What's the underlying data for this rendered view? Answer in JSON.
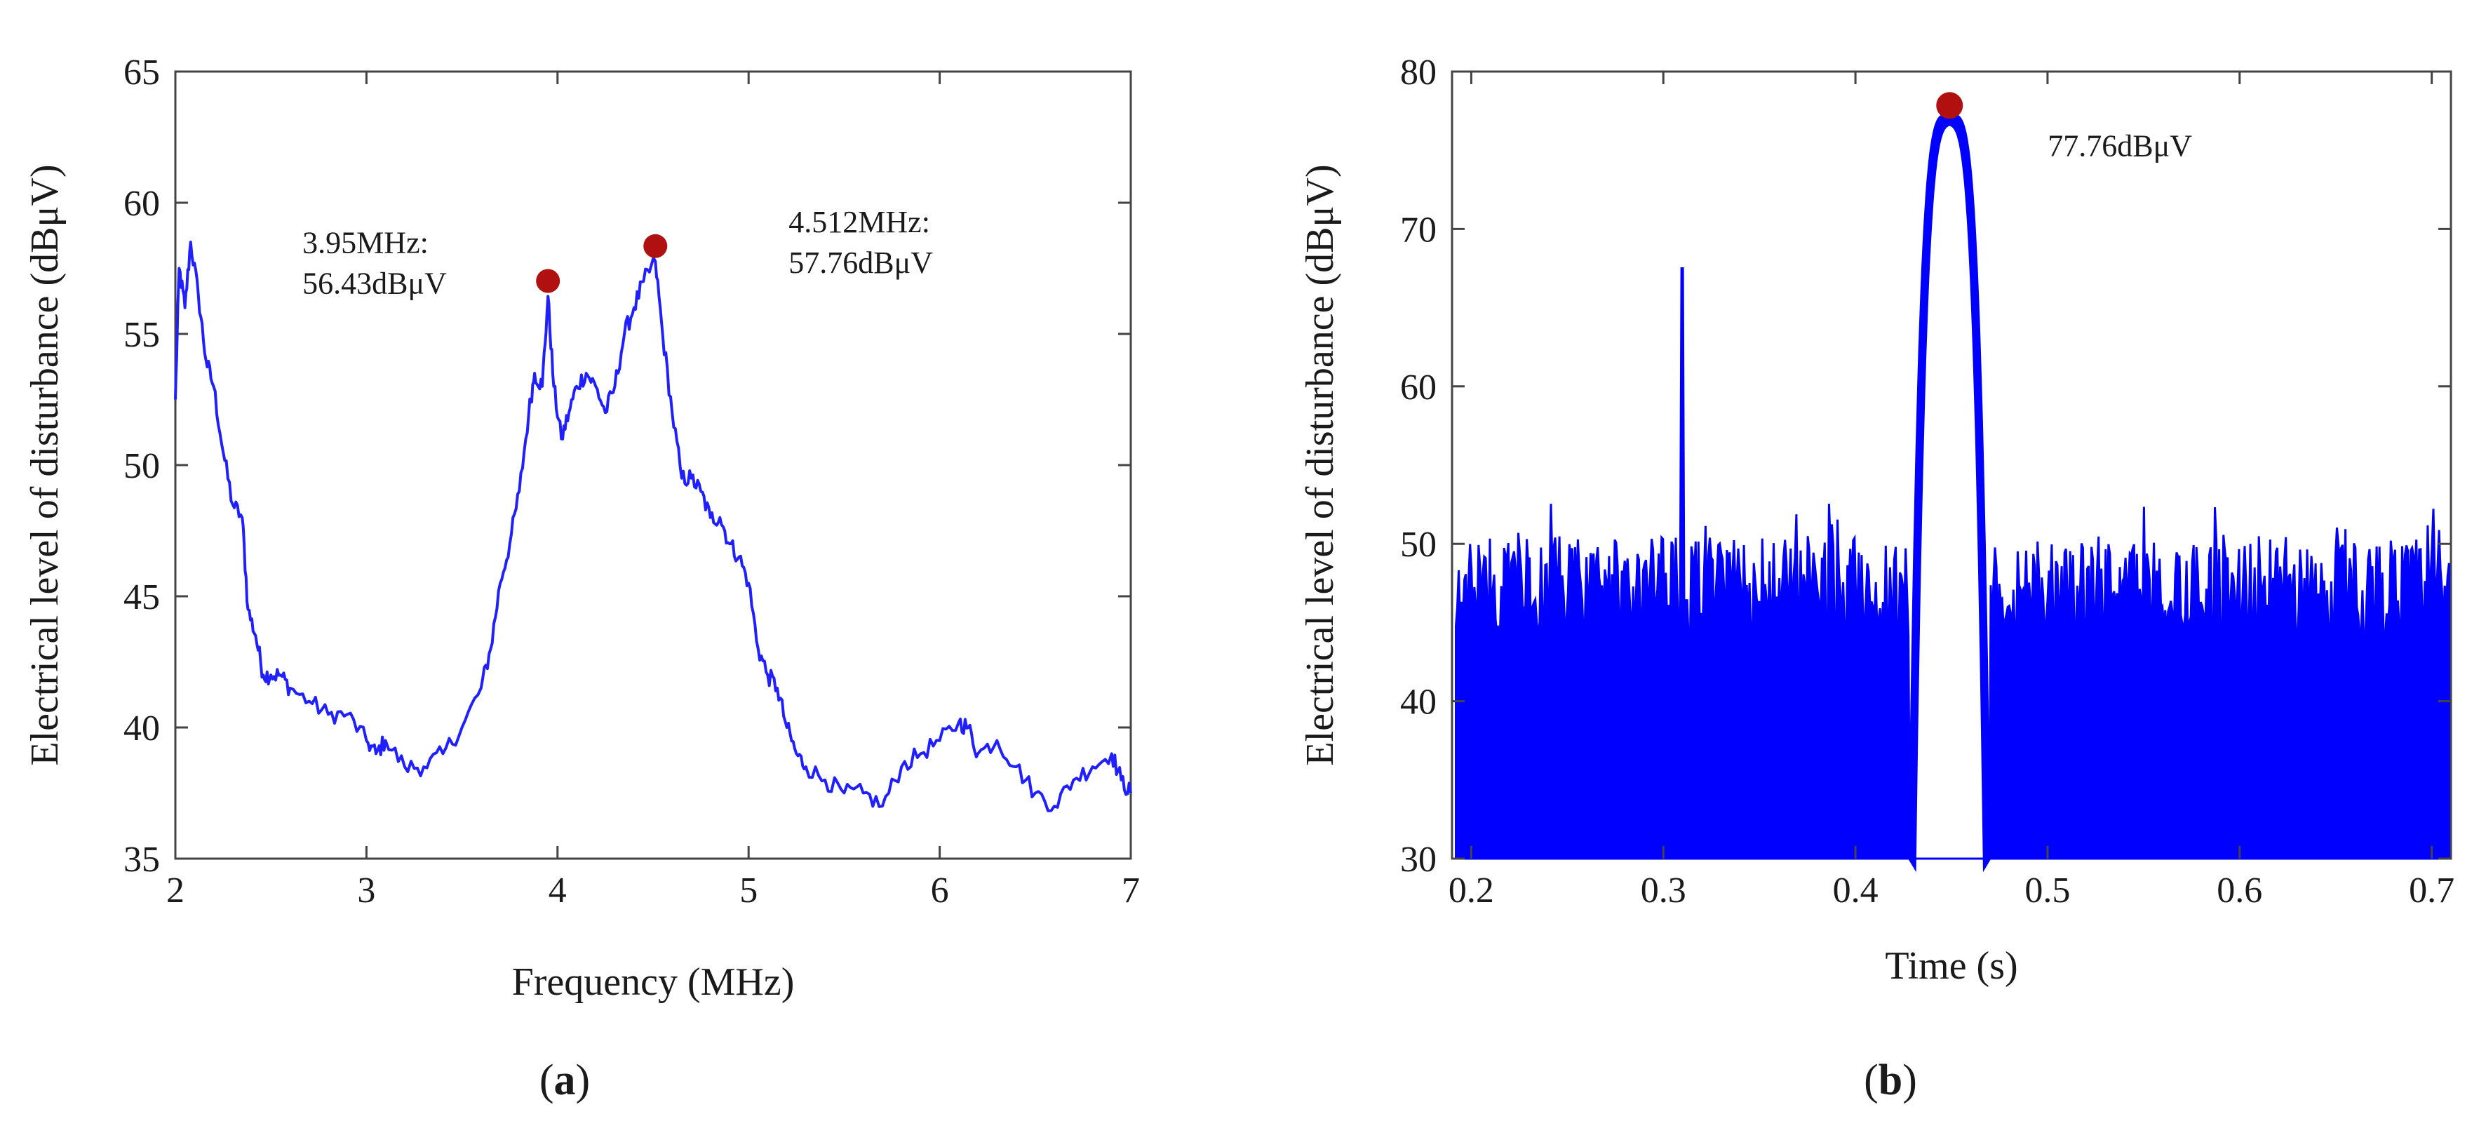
{
  "chart_data": [
    {
      "id": "a",
      "type": "line",
      "caption": "(a)",
      "caption_letter": "a",
      "xlabel": "Frequency (MHz)",
      "ylabel": "Electrical level of disturbance (dBμV)",
      "xlim": [
        2,
        7
      ],
      "ylim": [
        35,
        65
      ],
      "xticks": [
        2,
        3,
        4,
        5,
        6,
        7
      ],
      "yticks": [
        35,
        40,
        45,
        50,
        55,
        60,
        65
      ],
      "line_color": "#1f1fff",
      "series": [
        {
          "name": "spectrum",
          "x": [
            2.0,
            2.02,
            2.05,
            2.08,
            2.12,
            2.16,
            2.2,
            2.25,
            2.3,
            2.35,
            2.38,
            2.42,
            2.46,
            2.5,
            2.55,
            2.6,
            2.7,
            2.8,
            2.9,
            3.0,
            3.05,
            3.1,
            3.2,
            3.3,
            3.4,
            3.5,
            3.6,
            3.65,
            3.7,
            3.75,
            3.8,
            3.85,
            3.88,
            3.92,
            3.95,
            3.98,
            4.02,
            4.06,
            4.1,
            4.15,
            4.2,
            4.25,
            4.3,
            4.35,
            4.4,
            4.45,
            4.512,
            4.55,
            4.6,
            4.65,
            4.7,
            4.75,
            4.8,
            4.85,
            4.9,
            4.95,
            5.0,
            5.05,
            5.1,
            5.15,
            5.2,
            5.25,
            5.3,
            5.4,
            5.5,
            5.6,
            5.7,
            5.8,
            5.9,
            6.0,
            6.1,
            6.15,
            6.2,
            6.3,
            6.4,
            6.5,
            6.6,
            6.7,
            6.8,
            6.9,
            6.95,
            7.0
          ],
          "y": [
            52.5,
            57.5,
            56.0,
            58.5,
            56.5,
            54.0,
            53.0,
            50.5,
            48.5,
            48.0,
            44.5,
            43.5,
            42.0,
            42.0,
            42.0,
            41.5,
            41.0,
            40.5,
            40.5,
            39.5,
            39.0,
            39.5,
            38.5,
            38.5,
            39.0,
            40.0,
            41.5,
            43.0,
            45.5,
            47.0,
            49.0,
            52.0,
            53.5,
            53.0,
            56.43,
            53.0,
            51.0,
            52.0,
            53.0,
            53.5,
            53.0,
            52.0,
            53.0,
            55.0,
            56.0,
            57.0,
            57.76,
            55.0,
            52.0,
            49.5,
            49.5,
            49.0,
            48.0,
            48.0,
            47.0,
            46.5,
            45.5,
            43.0,
            42.0,
            41.5,
            40.0,
            39.0,
            38.5,
            38.0,
            37.5,
            37.5,
            37.0,
            38.5,
            39.0,
            39.5,
            40.2,
            40.0,
            39.0,
            39.5,
            38.5,
            37.5,
            37.0,
            38.0,
            38.5,
            39.0,
            38.0,
            37.5
          ]
        }
      ],
      "annotations": [
        {
          "x": 3.95,
          "y": 56.43,
          "line1": "3.95MHz:",
          "line2": "56.43dBμV",
          "marker_color": "#b01010"
        },
        {
          "x": 4.512,
          "y": 57.76,
          "line1": "4.512MHz:",
          "line2": "57.76dBμV",
          "marker_color": "#b01010"
        }
      ]
    },
    {
      "id": "b",
      "type": "area",
      "caption": "(b)",
      "caption_letter": "b",
      "xlabel": "Time (s)",
      "ylabel": "Electrical level of disturbance (dBμV)",
      "xlim": [
        0.19,
        0.71
      ],
      "ylim": [
        30,
        80
      ],
      "xticks": [
        0.2,
        0.3,
        0.4,
        0.5,
        0.6,
        0.7
      ],
      "xtick_labels": [
        "0.2",
        "0.3",
        "0.4",
        "0.5",
        "0.6",
        "0.7"
      ],
      "yticks": [
        30,
        40,
        50,
        60,
        70,
        80
      ],
      "fill_color": "#0000ff",
      "noise_floor_mean": 47,
      "noise_floor_range": [
        44,
        51
      ],
      "spike": {
        "x": 0.31,
        "y": 67.5
      },
      "pulse": {
        "x_start": 0.428,
        "x_end": 0.47,
        "peak_x": 0.449,
        "peak": 77.76
      },
      "annotations": [
        {
          "x": 0.449,
          "y": 77.76,
          "line1": "77.76dBμV",
          "marker_color": "#b01010"
        }
      ]
    }
  ]
}
